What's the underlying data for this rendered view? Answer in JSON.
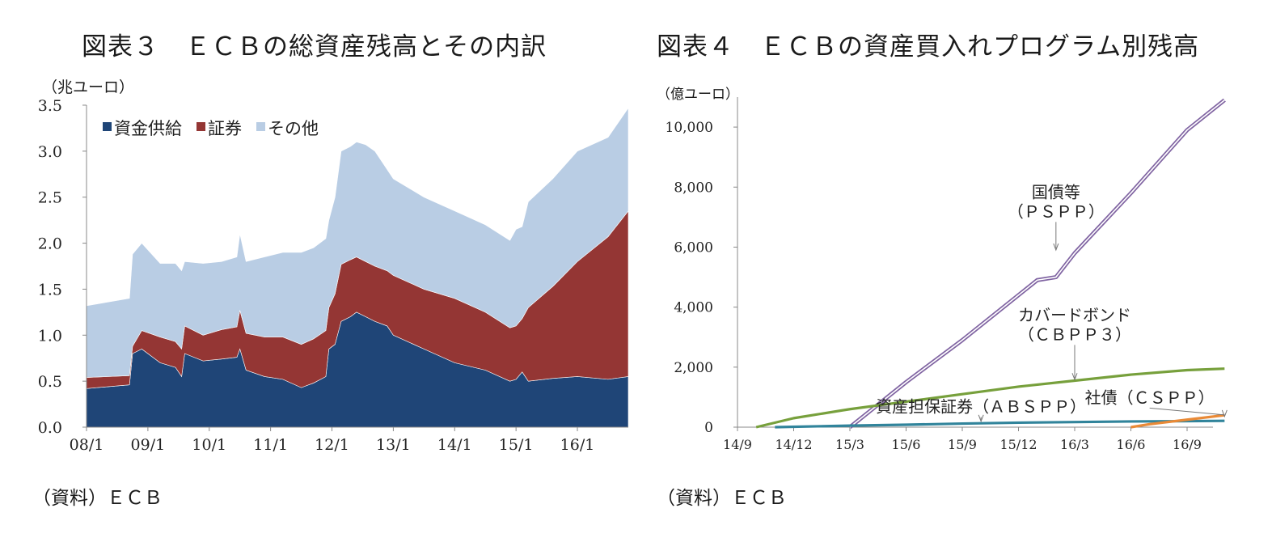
{
  "fig3": {
    "title": "図表３　ＥＣＢの総資産残高とその内訳",
    "unit": "（兆ユーロ）",
    "source": "（資料）ＥＣＢ",
    "chart_data": {
      "type": "area",
      "stacked": true,
      "ylim": [
        0,
        3.5
      ],
      "yticks": [
        "3.5",
        "3.0",
        "2.5",
        "2.0",
        "1.5",
        "1.0",
        "0.5",
        "0.0"
      ],
      "xticks": [
        "08/1",
        "09/1",
        "10/1",
        "11/1",
        "12/1",
        "13/1",
        "14/1",
        "15/1",
        "16/1"
      ],
      "x_domain": [
        2008.0,
        2016.83
      ],
      "legend": [
        "資金供給",
        "証券",
        "その他"
      ],
      "legend_position": "top-left",
      "colors": [
        "#1f4577",
        "#943634",
        "#b9cde4"
      ],
      "series": [
        {
          "name": "資金供給",
          "points": [
            [
              2008.0,
              0.42
            ],
            [
              2008.7,
              0.46
            ],
            [
              2008.75,
              0.8
            ],
            [
              2008.9,
              0.85
            ],
            [
              2009.2,
              0.7
            ],
            [
              2009.45,
              0.65
            ],
            [
              2009.55,
              0.55
            ],
            [
              2009.6,
              0.8
            ],
            [
              2009.9,
              0.72
            ],
            [
              2010.2,
              0.74
            ],
            [
              2010.45,
              0.76
            ],
            [
              2010.5,
              0.85
            ],
            [
              2010.6,
              0.62
            ],
            [
              2010.9,
              0.55
            ],
            [
              2011.2,
              0.52
            ],
            [
              2011.5,
              0.43
            ],
            [
              2011.7,
              0.48
            ],
            [
              2011.9,
              0.55
            ],
            [
              2011.95,
              0.85
            ],
            [
              2012.05,
              0.9
            ],
            [
              2012.15,
              1.15
            ],
            [
              2012.3,
              1.2
            ],
            [
              2012.4,
              1.25
            ],
            [
              2012.55,
              1.2
            ],
            [
              2012.7,
              1.15
            ],
            [
              2012.9,
              1.1
            ],
            [
              2013.0,
              1.0
            ],
            [
              2013.5,
              0.85
            ],
            [
              2014.0,
              0.7
            ],
            [
              2014.5,
              0.62
            ],
            [
              2014.9,
              0.5
            ],
            [
              2015.0,
              0.52
            ],
            [
              2015.1,
              0.6
            ],
            [
              2015.2,
              0.5
            ],
            [
              2015.6,
              0.53
            ],
            [
              2016.0,
              0.55
            ],
            [
              2016.5,
              0.52
            ],
            [
              2016.83,
              0.55
            ]
          ]
        },
        {
          "name": "証券",
          "points": [
            [
              2008.0,
              0.12
            ],
            [
              2008.7,
              0.1
            ],
            [
              2008.75,
              0.08
            ],
            [
              2008.9,
              0.2
            ],
            [
              2009.2,
              0.28
            ],
            [
              2009.45,
              0.28
            ],
            [
              2009.55,
              0.3
            ],
            [
              2009.6,
              0.3
            ],
            [
              2009.9,
              0.28
            ],
            [
              2010.2,
              0.32
            ],
            [
              2010.45,
              0.33
            ],
            [
              2010.5,
              0.42
            ],
            [
              2010.6,
              0.4
            ],
            [
              2010.9,
              0.43
            ],
            [
              2011.2,
              0.46
            ],
            [
              2011.5,
              0.47
            ],
            [
              2011.7,
              0.48
            ],
            [
              2011.9,
              0.5
            ],
            [
              2011.95,
              0.45
            ],
            [
              2012.05,
              0.55
            ],
            [
              2012.15,
              0.62
            ],
            [
              2012.3,
              0.62
            ],
            [
              2012.4,
              0.6
            ],
            [
              2012.55,
              0.6
            ],
            [
              2012.7,
              0.6
            ],
            [
              2012.9,
              0.6
            ],
            [
              2013.0,
              0.65
            ],
            [
              2013.5,
              0.65
            ],
            [
              2014.0,
              0.7
            ],
            [
              2014.5,
              0.63
            ],
            [
              2014.9,
              0.58
            ],
            [
              2015.0,
              0.58
            ],
            [
              2015.1,
              0.58
            ],
            [
              2015.2,
              0.8
            ],
            [
              2015.6,
              1.0
            ],
            [
              2016.0,
              1.25
            ],
            [
              2016.5,
              1.55
            ],
            [
              2016.83,
              1.8
            ]
          ]
        },
        {
          "name": "その他",
          "points": [
            [
              2008.0,
              0.78
            ],
            [
              2008.7,
              0.84
            ],
            [
              2008.75,
              1.0
            ],
            [
              2008.9,
              0.95
            ],
            [
              2009.2,
              0.8
            ],
            [
              2009.45,
              0.85
            ],
            [
              2009.55,
              0.85
            ],
            [
              2009.6,
              0.7
            ],
            [
              2009.9,
              0.78
            ],
            [
              2010.2,
              0.74
            ],
            [
              2010.45,
              0.76
            ],
            [
              2010.5,
              0.83
            ],
            [
              2010.6,
              0.78
            ],
            [
              2010.9,
              0.87
            ],
            [
              2011.2,
              0.92
            ],
            [
              2011.5,
              1.0
            ],
            [
              2011.7,
              0.99
            ],
            [
              2011.9,
              1.0
            ],
            [
              2011.95,
              0.95
            ],
            [
              2012.05,
              1.05
            ],
            [
              2012.15,
              1.23
            ],
            [
              2012.3,
              1.23
            ],
            [
              2012.4,
              1.25
            ],
            [
              2012.55,
              1.27
            ],
            [
              2012.7,
              1.25
            ],
            [
              2012.9,
              1.1
            ],
            [
              2013.0,
              1.05
            ],
            [
              2013.5,
              1.0
            ],
            [
              2014.0,
              0.95
            ],
            [
              2014.5,
              0.95
            ],
            [
              2014.9,
              0.95
            ],
            [
              2015.0,
              1.05
            ],
            [
              2015.1,
              1.0
            ],
            [
              2015.2,
              1.15
            ],
            [
              2015.6,
              1.17
            ],
            [
              2016.0,
              1.2
            ],
            [
              2016.5,
              1.08
            ],
            [
              2016.83,
              1.12
            ]
          ]
        }
      ]
    }
  },
  "fig4": {
    "title": "図表４　ＥＣＢの資産買入れプログラム別残高",
    "unit": "（億ユーロ）",
    "source": "（資料）ＥＣＢ",
    "chart_data": {
      "type": "line",
      "ylim": [
        0,
        11000
      ],
      "yticks": [
        "10,000",
        "8,000",
        "6,000",
        "4,000",
        "2,000",
        "0"
      ],
      "ytick_values": [
        10000,
        8000,
        6000,
        4000,
        2000,
        0
      ],
      "xticks": [
        "14/9",
        "14/12",
        "15/3",
        "15/6",
        "15/9",
        "15/12",
        "16/3",
        "16/6",
        "16/9"
      ],
      "x_domain": [
        "2014-09",
        "2016-11"
      ],
      "series": [
        {
          "name": "国債等（ＰＳＰＰ）",
          "color": "#8064a2",
          "points": [
            [
              "2015-03",
              0
            ],
            [
              "2015-06",
              1500
            ],
            [
              "2015-09",
              2900
            ],
            [
              "2015-12",
              4400
            ],
            [
              "2016-01",
              4900
            ],
            [
              "2016-02",
              5000
            ],
            [
              "2016-03",
              5800
            ],
            [
              "2016-06",
              7800
            ],
            [
              "2016-09",
              9900
            ],
            [
              "2016-11",
              10900
            ]
          ]
        },
        {
          "name": "カバードボンド（ＣＢＰＰ３）",
          "color": "#77a03c",
          "points": [
            [
              "2014-10",
              0
            ],
            [
              "2014-12",
              300
            ],
            [
              "2015-03",
              600
            ],
            [
              "2015-06",
              850
            ],
            [
              "2015-09",
              1100
            ],
            [
              "2015-12",
              1350
            ],
            [
              "2016-03",
              1550
            ],
            [
              "2016-06",
              1750
            ],
            [
              "2016-09",
              1900
            ],
            [
              "2016-11",
              1950
            ]
          ]
        },
        {
          "name": "資産担保証券（ＡＢＳＰＰ）",
          "color": "#31849b",
          "points": [
            [
              "2014-11",
              0
            ],
            [
              "2015-03",
              50
            ],
            [
              "2015-06",
              80
            ],
            [
              "2015-09",
              120
            ],
            [
              "2015-12",
              150
            ],
            [
              "2016-03",
              170
            ],
            [
              "2016-06",
              190
            ],
            [
              "2016-09",
              200
            ],
            [
              "2016-11",
              210
            ]
          ]
        },
        {
          "name": "社債（ＣＳＰＰ）",
          "color": "#e98a37",
          "points": [
            [
              "2016-06",
              0
            ],
            [
              "2016-07",
              100
            ],
            [
              "2016-09",
              250
            ],
            [
              "2016-11",
              400
            ]
          ]
        }
      ],
      "annotations": [
        {
          "lines": [
            "国債等",
            "（ＰＳＰＰ）"
          ],
          "at": [
            "2016-02",
            7000
          ],
          "arrow_to": [
            "2016-02",
            5850
          ]
        },
        {
          "lines": [
            "カバードボンド",
            "（ＣＢＰＰ３）"
          ],
          "at": [
            "2016-03",
            2900
          ],
          "arrow_to": [
            "2016-03",
            1530
          ]
        },
        {
          "lines": [
            "資産担保証券（ＡＢＳＰＰ）"
          ],
          "at": [
            "2015-10",
            500
          ],
          "arrow_to": [
            "2015-10",
            140
          ]
        },
        {
          "lines": [
            "社債（ＣＳＰＰ）"
          ],
          "at": [
            "2016-07",
            800
          ],
          "arrow_to": [
            "2016-11",
            300
          ]
        }
      ]
    }
  }
}
